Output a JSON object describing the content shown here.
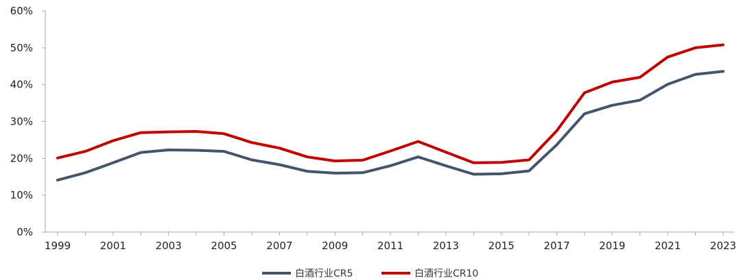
{
  "chart_data": {
    "type": "line",
    "title": "",
    "xlabel": "",
    "ylabel": "",
    "x": [
      1999,
      2000,
      2001,
      2002,
      2003,
      2004,
      2005,
      2006,
      2007,
      2008,
      2009,
      2010,
      2011,
      2012,
      2013,
      2014,
      2015,
      2016,
      2017,
      2018,
      2019,
      2020,
      2021,
      2022,
      2023
    ],
    "x_tick_labels": [
      "1999",
      "2001",
      "2003",
      "2005",
      "2007",
      "2009",
      "2011",
      "2013",
      "2015",
      "2017",
      "2019",
      "2021",
      "2023"
    ],
    "y_tick_labels": [
      "0%",
      "10%",
      "20%",
      "30%",
      "40%",
      "50%",
      "60%"
    ],
    "ylim": [
      0,
      60
    ],
    "grid": false,
    "legend_position": "bottom-center",
    "series": [
      {
        "name": "白酒行业CR5",
        "color": "#44546a",
        "values": [
          14.1,
          16.1,
          18.8,
          21.6,
          22.3,
          22.2,
          21.9,
          19.6,
          18.3,
          16.5,
          16.0,
          16.1,
          18.0,
          20.4,
          18.0,
          15.7,
          15.8,
          16.6,
          23.7,
          32.1,
          34.4,
          35.8,
          40.1,
          42.8,
          43.6
        ]
      },
      {
        "name": "白酒行业CR10",
        "color": "#c00000",
        "values": [
          20.1,
          21.9,
          24.8,
          27.0,
          27.2,
          27.3,
          26.7,
          24.3,
          22.8,
          20.4,
          19.3,
          19.5,
          22.0,
          24.6,
          21.7,
          18.8,
          18.9,
          19.6,
          27.5,
          37.8,
          40.7,
          42.0,
          47.5,
          50.0,
          50.8
        ]
      }
    ]
  }
}
